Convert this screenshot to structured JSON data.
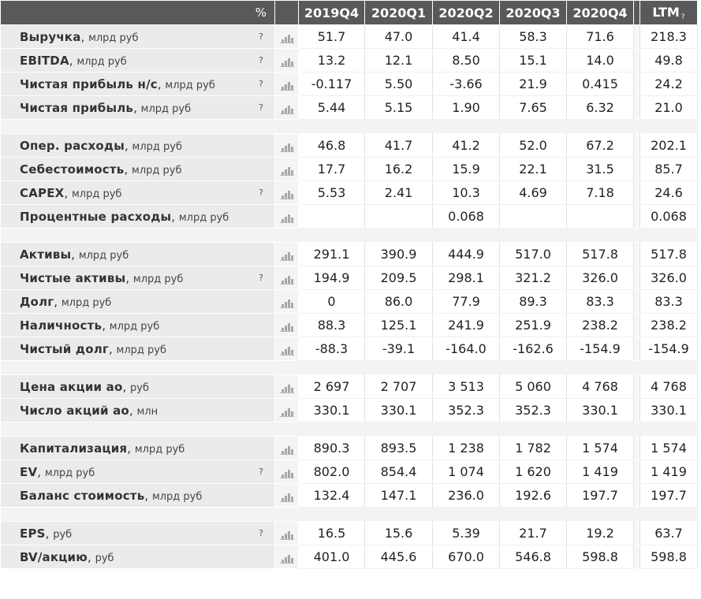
{
  "header": {
    "percent_label": "%",
    "periods": [
      "2019Q4",
      "2020Q1",
      "2020Q2",
      "2020Q3",
      "2020Q4"
    ],
    "ltm_label": "LTM",
    "ltm_help": "?"
  },
  "help_mark": "?",
  "groups": [
    {
      "rows": [
        {
          "name": "Выручка",
          "unit": "млрд руб",
          "help": true,
          "values": [
            "51.7",
            "47.0",
            "41.4",
            "58.3",
            "71.6"
          ],
          "ltm": "218.3"
        },
        {
          "name": "EBITDA",
          "unit": "млрд руб",
          "help": true,
          "values": [
            "13.2",
            "12.1",
            "8.50",
            "15.1",
            "14.0"
          ],
          "ltm": "49.8"
        },
        {
          "name": "Чистая прибыль н/с",
          "unit": "млрд руб",
          "help": true,
          "values": [
            "-0.117",
            "5.50",
            "-3.66",
            "21.9",
            "0.415"
          ],
          "ltm": "24.2"
        },
        {
          "name": "Чистая прибыль",
          "unit": "млрд руб",
          "help": true,
          "values": [
            "5.44",
            "5.15",
            "1.90",
            "7.65",
            "6.32"
          ],
          "ltm": "21.0"
        }
      ]
    },
    {
      "rows": [
        {
          "name": "Опер. расходы",
          "unit": "млрд руб",
          "help": false,
          "values": [
            "46.8",
            "41.7",
            "41.2",
            "52.0",
            "67.2"
          ],
          "ltm": "202.1"
        },
        {
          "name": "Себестоимость",
          "unit": "млрд руб",
          "help": false,
          "values": [
            "17.7",
            "16.2",
            "15.9",
            "22.1",
            "31.5"
          ],
          "ltm": "85.7"
        },
        {
          "name": "CAPEX",
          "unit": "млрд руб",
          "help": true,
          "values": [
            "5.53",
            "2.41",
            "10.3",
            "4.69",
            "7.18"
          ],
          "ltm": "24.6"
        },
        {
          "name": "Процентные расходы",
          "unit": "млрд руб",
          "help": false,
          "values": [
            "",
            "",
            "0.068",
            "",
            ""
          ],
          "ltm": "0.068"
        }
      ]
    },
    {
      "rows": [
        {
          "name": "Активы",
          "unit": "млрд руб",
          "help": false,
          "values": [
            "291.1",
            "390.9",
            "444.9",
            "517.0",
            "517.8"
          ],
          "ltm": "517.8"
        },
        {
          "name": "Чистые активы",
          "unit": "млрд руб",
          "help": true,
          "values": [
            "194.9",
            "209.5",
            "298.1",
            "321.2",
            "326.0"
          ],
          "ltm": "326.0"
        },
        {
          "name": "Долг",
          "unit": "млрд руб",
          "help": false,
          "values": [
            "0",
            "86.0",
            "77.9",
            "89.3",
            "83.3"
          ],
          "ltm": "83.3"
        },
        {
          "name": "Наличность",
          "unit": "млрд руб",
          "help": false,
          "values": [
            "88.3",
            "125.1",
            "241.9",
            "251.9",
            "238.2"
          ],
          "ltm": "238.2"
        },
        {
          "name": "Чистый долг",
          "unit": "млрд руб",
          "help": false,
          "values": [
            "-88.3",
            "-39.1",
            "-164.0",
            "-162.6",
            "-154.9"
          ],
          "ltm": "-154.9"
        }
      ]
    },
    {
      "rows": [
        {
          "name": "Цена акции ао",
          "unit": "руб",
          "help": false,
          "values": [
            "2 697",
            "2 707",
            "3 513",
            "5 060",
            "4 768"
          ],
          "ltm": "4 768"
        },
        {
          "name": "Число акций ао",
          "unit": "млн",
          "help": false,
          "values": [
            "330.1",
            "330.1",
            "352.3",
            "352.3",
            "330.1"
          ],
          "ltm": "330.1"
        }
      ]
    },
    {
      "rows": [
        {
          "name": "Капитализация",
          "unit": "млрд руб",
          "help": false,
          "values": [
            "890.3",
            "893.5",
            "1 238",
            "1 782",
            "1 574"
          ],
          "ltm": "1 574"
        },
        {
          "name": "EV",
          "unit": "млрд руб",
          "help": true,
          "values": [
            "802.0",
            "854.4",
            "1 074",
            "1 620",
            "1 419"
          ],
          "ltm": "1 419"
        },
        {
          "name": "Баланс стоимость",
          "unit": "млрд руб",
          "help": false,
          "values": [
            "132.4",
            "147.1",
            "236.0",
            "192.6",
            "197.7"
          ],
          "ltm": "197.7"
        }
      ]
    },
    {
      "rows": [
        {
          "name": "EPS",
          "unit": "руб",
          "help": true,
          "values": [
            "16.5",
            "15.6",
            "5.39",
            "21.7",
            "19.2"
          ],
          "ltm": "63.7"
        },
        {
          "name": "BV/акцию",
          "unit": "руб",
          "help": false,
          "values": [
            "401.0",
            "445.6",
            "670.0",
            "546.8",
            "598.8"
          ],
          "ltm": "598.8"
        }
      ]
    }
  ]
}
